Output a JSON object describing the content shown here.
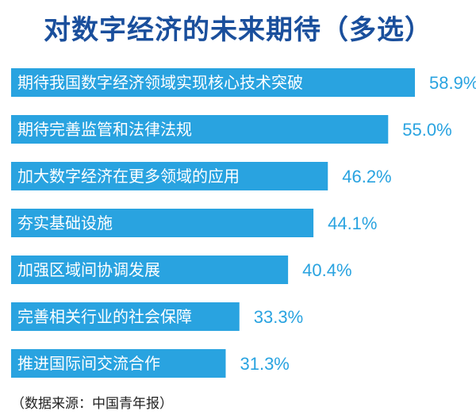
{
  "title": "对数字经济的未来期待（多选）",
  "source": "（数据来源：中国青年报）",
  "colors": {
    "bar": "#29a3e0",
    "value_text": "#29a3e0",
    "title": "#1a4f9c"
  },
  "chart_data": {
    "type": "bar",
    "orientation": "horizontal",
    "title": "对数字经济的未来期待（多选）",
    "categories": [
      "期待我国数字经济领域实现核心技术突破",
      "期待完善监管和法律法规",
      "加大数字经济在更多领域的应用",
      "夯实基础设施",
      "加强区域间协调发展",
      "完善相关行业的社会保障",
      "推进国际间交流合作"
    ],
    "values": [
      58.9,
      55.0,
      46.2,
      44.1,
      40.4,
      33.3,
      31.3
    ],
    "value_labels": [
      "58.9%",
      "55.0%",
      "46.2%",
      "44.1%",
      "40.4%",
      "33.3%",
      "31.3%"
    ],
    "unit": "%",
    "grid": false,
    "legend": "none"
  }
}
